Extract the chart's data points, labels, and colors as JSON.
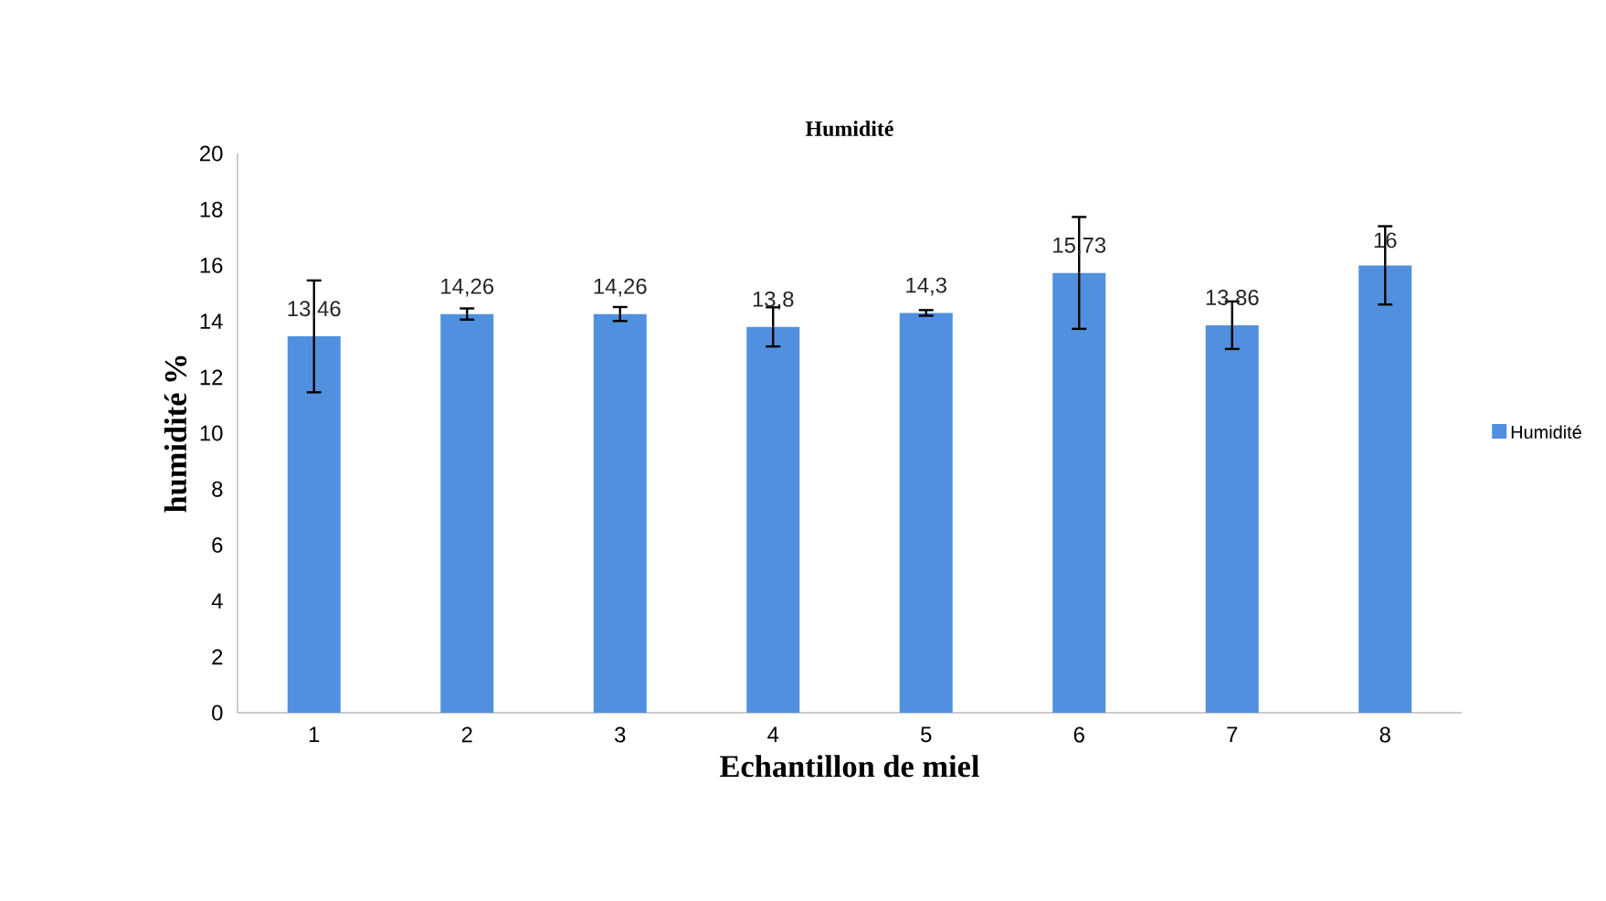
{
  "chart_data": {
    "type": "bar",
    "title": "Humidité",
    "xlabel": "Echantillon de miel",
    "ylabel": "humidité %",
    "categories": [
      "1",
      "2",
      "3",
      "4",
      "5",
      "6",
      "7",
      "8"
    ],
    "series": [
      {
        "name": "Humidité",
        "color": "#5090de",
        "values": [
          13.46,
          14.26,
          14.26,
          13.8,
          14.3,
          15.73,
          13.86,
          16
        ],
        "errors": [
          2.0,
          0.2,
          0.25,
          0.7,
          0.1,
          2.0,
          0.85,
          1.4
        ],
        "value_labels": [
          "13,46",
          "14,26",
          "14,26",
          "13,8",
          "14,3",
          "15,73",
          "13,86",
          "16"
        ]
      }
    ],
    "ylim": [
      0,
      20
    ],
    "yticks": [
      0,
      2,
      4,
      6,
      8,
      10,
      12,
      14,
      16,
      18,
      20
    ],
    "legend": "right",
    "grid": false
  }
}
